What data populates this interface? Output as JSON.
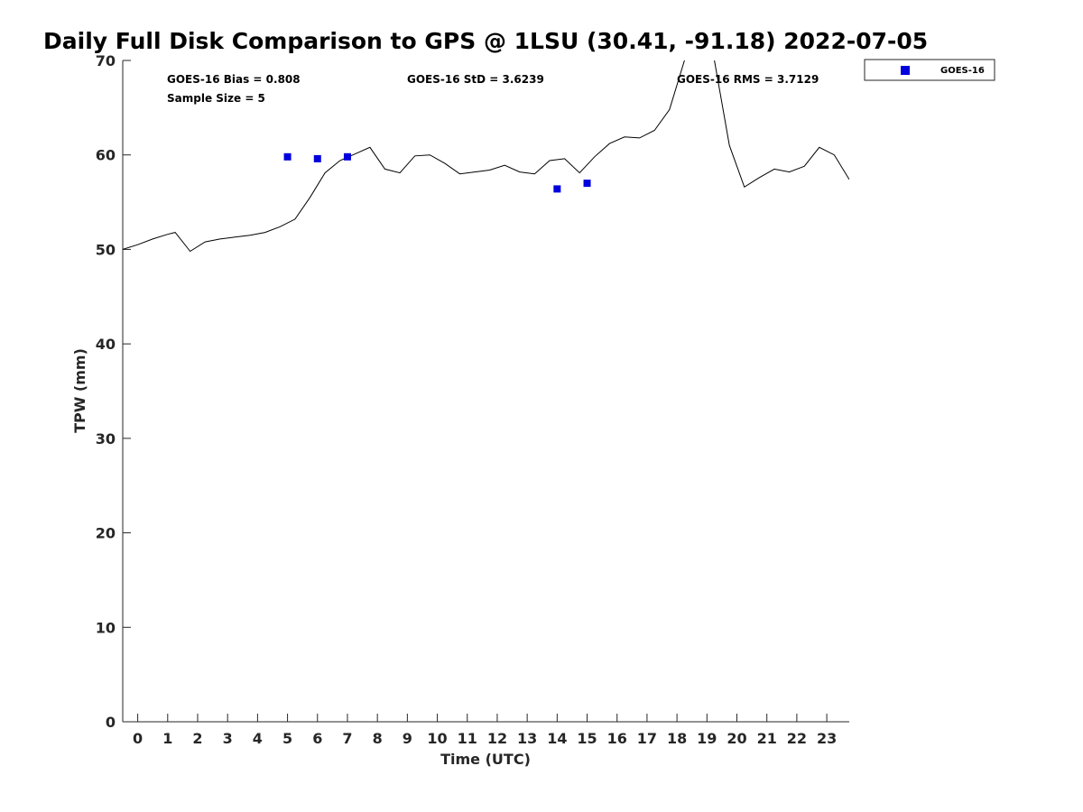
{
  "chart_data": {
    "type": "line",
    "title": "Daily Full Disk Comparison to GPS @ 1LSU (30.41, -91.18) 2022-07-05",
    "xlabel": "Time (UTC)",
    "ylabel": "TPW (mm)",
    "xlim": [
      -0.5,
      23.75
    ],
    "ylim": [
      0,
      70
    ],
    "x_ticks": [
      0,
      1,
      2,
      3,
      4,
      5,
      6,
      7,
      8,
      9,
      10,
      11,
      12,
      13,
      14,
      15,
      16,
      17,
      18,
      19,
      20,
      21,
      22,
      23
    ],
    "x_tick_labels": [
      "0",
      "1",
      "2",
      "3",
      "4",
      "5",
      "6",
      "7",
      "8",
      "9",
      "10",
      "11",
      "12",
      "13",
      "14",
      "15",
      "16",
      "17",
      "18",
      "19",
      "20",
      "21",
      "22",
      "23"
    ],
    "y_ticks": [
      0,
      10,
      20,
      30,
      40,
      50,
      60,
      70
    ],
    "y_tick_labels": [
      "0",
      "10",
      "20",
      "30",
      "40",
      "50",
      "60",
      "70"
    ],
    "grid": false,
    "legend_position": "outside-top-right",
    "series": [
      {
        "style": "line",
        "color": "#000000",
        "x": [
          -0.5,
          0.0,
          0.5,
          1.0,
          1.25,
          1.75,
          2.25,
          2.75,
          3.25,
          3.75,
          4.25,
          4.75,
          5.25,
          5.75,
          6.25,
          6.75,
          7.25,
          7.75,
          8.25,
          8.75,
          9.25,
          9.75,
          10.25,
          10.75,
          11.25,
          11.75,
          12.25,
          12.75,
          13.25,
          13.75,
          14.25,
          14.75,
          15.25,
          15.75,
          16.25,
          16.75,
          17.25,
          17.75,
          18.25,
          18.5,
          19.0,
          19.25,
          19.75,
          20.25,
          20.75,
          21.25,
          21.75,
          22.25,
          22.75,
          23.25,
          23.75
        ],
        "y": [
          50.0,
          50.5,
          51.1,
          51.6,
          51.8,
          49.8,
          50.8,
          51.1,
          51.3,
          51.5,
          51.8,
          52.4,
          53.2,
          55.5,
          58.1,
          59.4,
          60.1,
          60.8,
          58.5,
          58.1,
          59.9,
          60.0,
          59.1,
          58.0,
          58.2,
          58.4,
          58.9,
          58.2,
          58.0,
          59.4,
          59.6,
          58.1,
          59.8,
          61.2,
          61.9,
          61.8,
          62.6,
          64.8,
          70.0,
          72.0,
          72.0,
          70.0,
          61.0,
          56.6,
          57.6,
          58.5,
          58.2,
          58.8,
          60.8,
          60.0,
          57.4
        ]
      },
      {
        "name": "GOES-16",
        "style": "marker-square",
        "color": "#0000dd",
        "x": [
          5,
          6,
          7,
          14,
          15
        ],
        "y": [
          59.8,
          59.6,
          59.8,
          56.4,
          57.0
        ]
      }
    ],
    "annotations": {
      "bias": "GOES-16 Bias = 0.808",
      "sample_size": "Sample Size = 5",
      "std": "GOES-16 StD = 3.6239",
      "rms": "GOES-16 RMS = 3.7129"
    }
  }
}
